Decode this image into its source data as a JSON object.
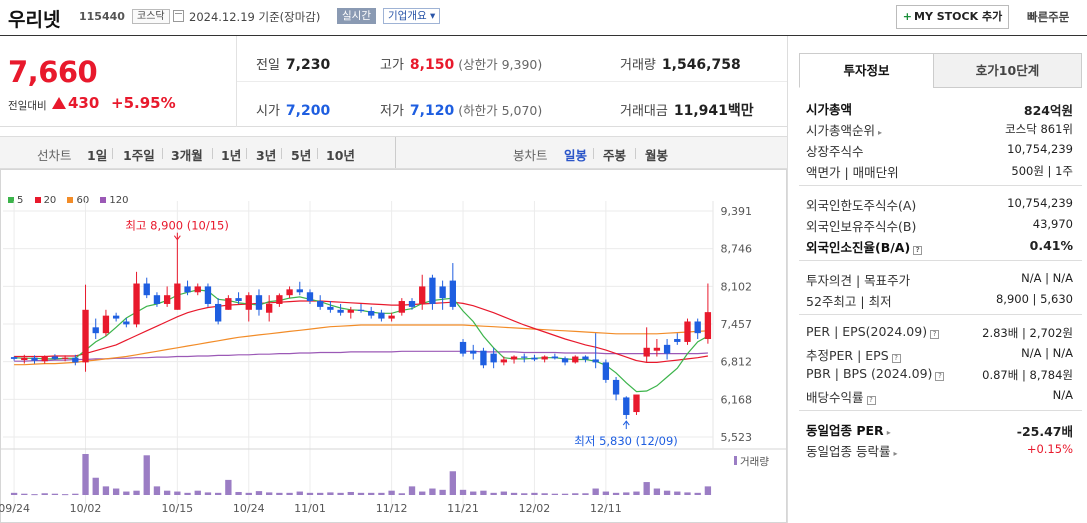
{
  "header": {
    "name": "우리넷",
    "code": "115440",
    "market": "코스닥",
    "date": "2024.12.19  기준(장마감)",
    "live_badge": "실시간",
    "overview": "기업개요 ▾",
    "mystock": "MY STOCK 추가",
    "mystock_plus": "+",
    "quick_order": "빠른주문"
  },
  "price": {
    "current": "7,660",
    "change_label": "전일대비",
    "change": "430",
    "change_pct": "+5.95%",
    "prev_close_label": "전일",
    "prev_close": "7,230",
    "high_label": "고가",
    "high": "8,150",
    "upper_limit": "(상한가 9,390)",
    "volume_label": "거래량",
    "volume": "1,546,758",
    "open_label": "시가",
    "open": "7,200",
    "low_label": "저가",
    "low": "7,120",
    "lower_limit": "(하한가 5,070)",
    "amount_label": "거래대금",
    "amount": "11,941백만"
  },
  "periods": {
    "line_label": "선차트",
    "line_items": [
      "1일",
      "1주일",
      "3개월",
      "1년",
      "3년",
      "5년",
      "10년"
    ],
    "candle_label": "봉차트",
    "candle_items": [
      "일봉",
      "주봉",
      "월봉"
    ],
    "selected_candle": "일봉"
  },
  "chart_data": {
    "type": "candlestick",
    "legend": [
      {
        "name": "5",
        "color": "#3cb44b"
      },
      {
        "name": "20",
        "color": "#e8192c"
      },
      {
        "name": "60",
        "color": "#f28c28"
      },
      {
        "name": "120",
        "color": "#9b59b6"
      }
    ],
    "y_ticks": [
      "9,391",
      "8,746",
      "8,102",
      "7,457",
      "6,812",
      "6,168",
      "5,523"
    ],
    "ylim": [
      5523,
      9391
    ],
    "x_ticks": [
      "09/24",
      "10/02",
      "10/15",
      "10/24",
      "11/01",
      "11/12",
      "11/21",
      "12/02",
      "12/11"
    ],
    "high_annotation": "최고 8,900 (10/15)",
    "low_annotation": "최저 5,830 (12/09)",
    "volume_label": "거래량",
    "candles": [
      {
        "o": 6890,
        "h": 6900,
        "l": 6830,
        "c": 6860
      },
      {
        "o": 6840,
        "h": 6930,
        "l": 6780,
        "c": 6880
      },
      {
        "o": 6880,
        "h": 6920,
        "l": 6780,
        "c": 6830
      },
      {
        "o": 6820,
        "h": 6920,
        "l": 6780,
        "c": 6900
      },
      {
        "o": 6900,
        "h": 6940,
        "l": 6840,
        "c": 6860
      },
      {
        "o": 6860,
        "h": 6920,
        "l": 6820,
        "c": 6880
      },
      {
        "o": 6880,
        "h": 6930,
        "l": 6750,
        "c": 6800
      },
      {
        "o": 6800,
        "h": 8130,
        "l": 6640,
        "c": 7700
      },
      {
        "o": 7400,
        "h": 7550,
        "l": 7200,
        "c": 7300
      },
      {
        "o": 7300,
        "h": 7700,
        "l": 7250,
        "c": 7600
      },
      {
        "o": 7600,
        "h": 7650,
        "l": 7500,
        "c": 7550
      },
      {
        "o": 7500,
        "h": 7560,
        "l": 7400,
        "c": 7450
      },
      {
        "o": 7450,
        "h": 8350,
        "l": 7400,
        "c": 8150
      },
      {
        "o": 8150,
        "h": 8250,
        "l": 7900,
        "c": 7950
      },
      {
        "o": 7950,
        "h": 8000,
        "l": 7750,
        "c": 7800
      },
      {
        "o": 7800,
        "h": 8100,
        "l": 7750,
        "c": 7950
      },
      {
        "o": 7700,
        "h": 8900,
        "l": 7700,
        "c": 8150
      },
      {
        "o": 8100,
        "h": 8200,
        "l": 7950,
        "c": 8000
      },
      {
        "o": 8000,
        "h": 8150,
        "l": 7950,
        "c": 8100
      },
      {
        "o": 8100,
        "h": 8150,
        "l": 7750,
        "c": 7800
      },
      {
        "o": 7800,
        "h": 7900,
        "l": 7450,
        "c": 7500
      },
      {
        "o": 7700,
        "h": 7950,
        "l": 7700,
        "c": 7900
      },
      {
        "o": 7900,
        "h": 8000,
        "l": 7800,
        "c": 7850
      },
      {
        "o": 7700,
        "h": 8000,
        "l": 7500,
        "c": 7950
      },
      {
        "o": 7950,
        "h": 8050,
        "l": 7600,
        "c": 7700
      },
      {
        "o": 7650,
        "h": 7950,
        "l": 7500,
        "c": 7800
      },
      {
        "o": 7800,
        "h": 7980,
        "l": 7750,
        "c": 7950
      },
      {
        "o": 7950,
        "h": 8100,
        "l": 7900,
        "c": 8050
      },
      {
        "o": 8050,
        "h": 8180,
        "l": 7950,
        "c": 8000
      },
      {
        "o": 8000,
        "h": 8050,
        "l": 7800,
        "c": 7850
      },
      {
        "o": 7850,
        "h": 7950,
        "l": 7700,
        "c": 7750
      },
      {
        "o": 7750,
        "h": 7850,
        "l": 7650,
        "c": 7700
      },
      {
        "o": 7700,
        "h": 7800,
        "l": 7600,
        "c": 7650
      },
      {
        "o": 7650,
        "h": 7750,
        "l": 7550,
        "c": 7700
      },
      {
        "o": 7700,
        "h": 7800,
        "l": 7650,
        "c": 7680
      },
      {
        "o": 7680,
        "h": 7750,
        "l": 7550,
        "c": 7600
      },
      {
        "o": 7650,
        "h": 7700,
        "l": 7500,
        "c": 7550
      },
      {
        "o": 7550,
        "h": 7650,
        "l": 7500,
        "c": 7600
      },
      {
        "o": 7650,
        "h": 7900,
        "l": 7600,
        "c": 7850
      },
      {
        "o": 7850,
        "h": 7900,
        "l": 7700,
        "c": 7750
      },
      {
        "o": 7800,
        "h": 8300,
        "l": 7700,
        "c": 8100
      },
      {
        "o": 8250,
        "h": 8300,
        "l": 7700,
        "c": 7800
      },
      {
        "o": 8100,
        "h": 8200,
        "l": 7700,
        "c": 7900
      },
      {
        "o": 8200,
        "h": 8500,
        "l": 7700,
        "c": 7750
      },
      {
        "o": 7150,
        "h": 7200,
        "l": 6900,
        "c": 6950
      },
      {
        "o": 7000,
        "h": 7100,
        "l": 6850,
        "c": 6950
      },
      {
        "o": 7000,
        "h": 7050,
        "l": 6700,
        "c": 6750
      },
      {
        "o": 6950,
        "h": 7050,
        "l": 6700,
        "c": 6800
      },
      {
        "o": 6800,
        "h": 6900,
        "l": 6750,
        "c": 6850
      },
      {
        "o": 6850,
        "h": 6920,
        "l": 6780,
        "c": 6900
      },
      {
        "o": 6900,
        "h": 6950,
        "l": 6800,
        "c": 6880
      },
      {
        "o": 6880,
        "h": 6930,
        "l": 6820,
        "c": 6850
      },
      {
        "o": 6850,
        "h": 6920,
        "l": 6800,
        "c": 6900
      },
      {
        "o": 6900,
        "h": 6950,
        "l": 6850,
        "c": 6870
      },
      {
        "o": 6870,
        "h": 6900,
        "l": 6750,
        "c": 6800
      },
      {
        "o": 6800,
        "h": 6920,
        "l": 6780,
        "c": 6900
      },
      {
        "o": 6900,
        "h": 6920,
        "l": 6800,
        "c": 6850
      },
      {
        "o": 6850,
        "h": 7300,
        "l": 6700,
        "c": 6800
      },
      {
        "o": 6800,
        "h": 6850,
        "l": 6450,
        "c": 6500
      },
      {
        "o": 6500,
        "h": 6550,
        "l": 6150,
        "c": 6250
      },
      {
        "o": 6200,
        "h": 6220,
        "l": 5830,
        "c": 5900
      },
      {
        "o": 5950,
        "h": 6250,
        "l": 5900,
        "c": 6250
      },
      {
        "o": 6900,
        "h": 7400,
        "l": 6800,
        "c": 7050
      },
      {
        "o": 7000,
        "h": 7200,
        "l": 6900,
        "c": 7050
      },
      {
        "o": 7100,
        "h": 7200,
        "l": 6850,
        "c": 6950
      },
      {
        "o": 7200,
        "h": 7300,
        "l": 7100,
        "c": 7150
      },
      {
        "o": 7150,
        "h": 7550,
        "l": 7100,
        "c": 7500
      },
      {
        "o": 7500,
        "h": 7550,
        "l": 7200,
        "c": 7300
      },
      {
        "o": 7200,
        "h": 8150,
        "l": 7120,
        "c": 7660
      }
    ],
    "ma5": [
      6880,
      6870,
      6870,
      6860,
      6860,
      6870,
      6870,
      7010,
      7150,
      7250,
      7400,
      7560,
      7660,
      7760,
      7800,
      7860,
      7950,
      8000,
      8040,
      8020,
      7880,
      7860,
      7820,
      7800,
      7780,
      7840,
      7860,
      7900,
      7920,
      7880,
      7840,
      7780,
      7730,
      7700,
      7690,
      7660,
      7640,
      7640,
      7690,
      7720,
      7810,
      7860,
      7880,
      7900,
      7680,
      7500,
      7250,
      7050,
      6880,
      6860,
      6860,
      6870,
      6880,
      6880,
      6860,
      6850,
      6850,
      6820,
      6750,
      6620,
      6450,
      6300,
      6310,
      6400,
      6550,
      6700,
      6950,
      7150,
      7250
    ],
    "ma20": [
      6900,
      6900,
      6900,
      6900,
      6910,
      6910,
      6910,
      6950,
      7000,
      7050,
      7100,
      7180,
      7260,
      7340,
      7420,
      7500,
      7580,
      7650,
      7700,
      7740,
      7760,
      7780,
      7790,
      7800,
      7810,
      7820,
      7830,
      7840,
      7850,
      7850,
      7850,
      7840,
      7830,
      7820,
      7810,
      7800,
      7790,
      7780,
      7780,
      7790,
      7800,
      7810,
      7820,
      7830,
      7810,
      7770,
      7710,
      7650,
      7580,
      7510,
      7440,
      7380,
      7320,
      7260,
      7200,
      7150,
      7100,
      7060,
      7010,
      6950,
      6890,
      6830,
      6800,
      6800,
      6820,
      6840,
      6860,
      6880,
      6910
    ],
    "ma60": [
      6760,
      6760,
      6770,
      6780,
      6780,
      6790,
      6800,
      6820,
      6840,
      6860,
      6880,
      6900,
      6930,
      6960,
      6990,
      7020,
      7050,
      7080,
      7110,
      7140,
      7170,
      7200,
      7230,
      7250,
      7270,
      7290,
      7310,
      7330,
      7350,
      7370,
      7390,
      7410,
      7420,
      7430,
      7440,
      7440,
      7440,
      7440,
      7440,
      7440,
      7440,
      7440,
      7440,
      7440,
      7440,
      7430,
      7420,
      7410,
      7400,
      7390,
      7380,
      7370,
      7360,
      7350,
      7340,
      7330,
      7320,
      7310,
      7300,
      7290,
      7290,
      7290,
      7290,
      7290,
      7300,
      7310,
      7320,
      7330,
      7340
    ],
    "ma120": [
      6820,
      6820,
      6830,
      6830,
      6840,
      6840,
      6850,
      6850,
      6860,
      6860,
      6870,
      6870,
      6880,
      6880,
      6890,
      6890,
      6900,
      6900,
      6910,
      6910,
      6920,
      6920,
      6930,
      6930,
      6940,
      6940,
      6950,
      6950,
      6960,
      6960,
      6970,
      6970,
      6970,
      6980,
      6980,
      6980,
      6980,
      6980,
      6990,
      6990,
      6990,
      6990,
      6990,
      6990,
      6990,
      6990,
      6980,
      6980,
      6980,
      6980,
      6970,
      6970,
      6970,
      6970,
      6960,
      6960,
      6960,
      6960,
      6950,
      6950,
      6950,
      6950,
      6950,
      6950,
      6950,
      6950,
      6950,
      6950,
      6960
    ],
    "volume": [
      5,
      3,
      2,
      4,
      3,
      2,
      3,
      95,
      40,
      20,
      15,
      8,
      10,
      92,
      20,
      10,
      8,
      5,
      10,
      6,
      5,
      35,
      7,
      5,
      9,
      6,
      5,
      5,
      8,
      5,
      5,
      6,
      5,
      7,
      5,
      5,
      5,
      10,
      4,
      20,
      8,
      15,
      12,
      55,
      12,
      8,
      10,
      5,
      8,
      5,
      4,
      5,
      4,
      3,
      3,
      4,
      4,
      15,
      8,
      5,
      6,
      8,
      30,
      15,
      10,
      8,
      6,
      5,
      20
    ]
  },
  "right_panel": {
    "tabs": [
      "투자정보",
      "호가10단계"
    ],
    "sections": [
      [
        {
          "k": "시가총액",
          "v": "824억원",
          "bold": true
        },
        {
          "k": "시가총액순위",
          "v": "코스닥 861위",
          "caret": true
        },
        {
          "k": "상장주식수",
          "v": "10,754,239"
        },
        {
          "k": "액면가  |  매매단위",
          "v": "500원  |  1주"
        }
      ],
      [
        {
          "k": "외국인한도주식수(A)",
          "v": "10,754,239"
        },
        {
          "k": "외국인보유주식수(B)",
          "v": "43,970"
        },
        {
          "k": "외국인소진율(B/A)",
          "v": "0.41%",
          "bold": true,
          "q": true
        }
      ],
      [
        {
          "k": "투자의견  |  목표주가",
          "v": "N/A  |  N/A"
        },
        {
          "k": "52주최고  |  최저",
          "v": "8,900  |  5,630"
        }
      ],
      [
        {
          "k": "PER  |  EPS(2024.09)",
          "v": "2.83배  |  2,702원",
          "q": true
        },
        {
          "k": "추정PER  |  EPS",
          "v": "N/A  |  N/A",
          "q": true
        },
        {
          "k": "PBR  |  BPS (2024.09)",
          "v": "0.87배  |  8,784원",
          "q": true
        },
        {
          "k": "배당수익률",
          "v": "N/A",
          "q": true
        }
      ],
      [
        {
          "k": "동일업종 PER",
          "v": "-25.47배",
          "bold": true,
          "caret": true
        },
        {
          "k": "동일업종 등락률",
          "v": "+0.15%",
          "red": true,
          "caret": true
        }
      ]
    ]
  }
}
